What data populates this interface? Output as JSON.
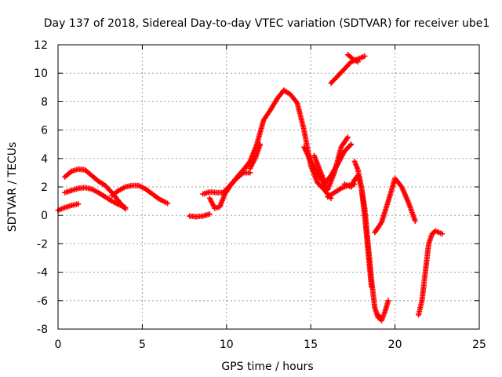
{
  "chart_data": {
    "type": "scatter",
    "title": "Day 137 of 2018, Sidereal Day-to-day VTEC variation (SDTVAR) for receiver ube1",
    "xlabel": "GPS time / hours",
    "ylabel": "SDTVAR / TECUs",
    "xlim": [
      0,
      25
    ],
    "ylim": [
      -8,
      12
    ],
    "xticks": [
      0,
      5,
      10,
      15,
      20,
      25
    ],
    "yticks": [
      -8,
      -6,
      -4,
      -2,
      0,
      2,
      4,
      6,
      8,
      10,
      12
    ],
    "grid": true,
    "marker": "+",
    "color": "#ff0000",
    "series": [
      {
        "x": [
          0.0,
          0.4,
          0.8,
          1.2
        ],
        "y": [
          0.35,
          0.55,
          0.7,
          0.8
        ]
      },
      {
        "x": [
          0.4,
          0.8,
          1.2,
          1.6,
          2.0,
          2.4,
          2.8,
          3.2,
          3.6,
          4.0
        ],
        "y": [
          2.7,
          3.1,
          3.25,
          3.2,
          2.8,
          2.4,
          2.1,
          1.6,
          1.0,
          0.45
        ]
      },
      {
        "x": [
          0.4,
          0.8,
          1.2,
          1.6,
          2.0,
          2.4,
          2.8,
          3.2,
          3.6,
          4.0
        ],
        "y": [
          1.6,
          1.75,
          1.9,
          1.95,
          1.85,
          1.6,
          1.3,
          1.0,
          0.75,
          0.55
        ]
      },
      {
        "x": [
          3.2,
          3.6,
          4.0,
          4.4,
          4.8,
          5.2,
          5.6,
          6.0,
          6.5
        ],
        "y": [
          1.4,
          1.75,
          2.0,
          2.1,
          2.1,
          1.85,
          1.5,
          1.15,
          0.85
        ]
      },
      {
        "x": [
          7.8,
          8.2,
          8.6,
          9.0
        ],
        "y": [
          -0.05,
          -0.1,
          -0.05,
          0.1
        ]
      },
      {
        "x": [
          8.6,
          9.0,
          9.4,
          9.8,
          10.2,
          10.6,
          11.0,
          11.4
        ],
        "y": [
          1.5,
          1.65,
          1.6,
          1.6,
          2.1,
          2.6,
          3.0,
          3.0
        ]
      },
      {
        "x": [
          9.0,
          9.3,
          9.6,
          9.9,
          10.3,
          10.7,
          11.0,
          11.4,
          11.8,
          12.2,
          12.6,
          13.0,
          13.4,
          13.8,
          14.2,
          14.6,
          15.0,
          15.4,
          15.8,
          16.2
        ],
        "y": [
          1.2,
          0.5,
          0.6,
          1.5,
          2.2,
          2.8,
          3.2,
          3.8,
          5.0,
          6.7,
          7.4,
          8.2,
          8.8,
          8.5,
          7.9,
          6.0,
          3.5,
          2.3,
          1.8,
          1.2
        ]
      },
      {
        "x": [
          11.4,
          11.7,
          12.0
        ],
        "y": [
          3.3,
          4.0,
          5.0
        ]
      },
      {
        "x": [
          14.6,
          15.0,
          15.4,
          15.8,
          16.2,
          16.6,
          17.0,
          17.4
        ],
        "y": [
          4.8,
          3.8,
          3.0,
          2.2,
          2.8,
          3.6,
          4.5,
          5.0
        ]
      },
      {
        "x": [
          15.2,
          15.6,
          16.0,
          16.4,
          16.8,
          17.2
        ],
        "y": [
          4.2,
          3.0,
          1.8,
          3.0,
          4.8,
          5.5
        ]
      },
      {
        "x": [
          16.0,
          16.4,
          16.8,
          17.2,
          17.6
        ],
        "y": [
          1.3,
          1.6,
          1.9,
          2.1,
          2.2
        ]
      },
      {
        "x": [
          17.0,
          17.4,
          17.6,
          17.8,
          18.0,
          18.2,
          18.4,
          18.6,
          18.8,
          19.0
        ],
        "y": [
          2.2,
          2.0,
          2.5,
          2.8,
          2.0,
          0.5,
          -2.0,
          -4.5,
          -6.5,
          -7.2
        ]
      },
      {
        "x": [
          17.6,
          17.8,
          18.0,
          18.2,
          18.4,
          18.6
        ],
        "y": [
          3.8,
          3.2,
          2.0,
          0.0,
          -2.5,
          -5.0
        ]
      },
      {
        "x": [
          16.2,
          16.6,
          17.0,
          17.4,
          17.8,
          18.2
        ],
        "y": [
          9.3,
          9.8,
          10.3,
          10.8,
          11.0,
          11.2
        ]
      },
      {
        "x": [
          17.2,
          17.5,
          17.8
        ],
        "y": [
          11.3,
          11.0,
          10.8
        ]
      },
      {
        "x": [
          19.0,
          19.2,
          19.4,
          19.6
        ],
        "y": [
          -7.0,
          -7.4,
          -6.8,
          -6.0
        ]
      },
      {
        "x": [
          18.8,
          19.2,
          19.6,
          20.0,
          20.4,
          20.8,
          21.2
        ],
        "y": [
          -1.2,
          -0.5,
          1.0,
          2.6,
          2.0,
          0.9,
          -0.4
        ]
      },
      {
        "x": [
          21.4,
          21.6,
          21.8,
          22.0,
          22.2,
          22.4,
          22.6,
          22.8
        ],
        "y": [
          -7.0,
          -6.0,
          -4.0,
          -2.0,
          -1.3,
          -1.1,
          -1.2,
          -1.3
        ]
      }
    ]
  }
}
